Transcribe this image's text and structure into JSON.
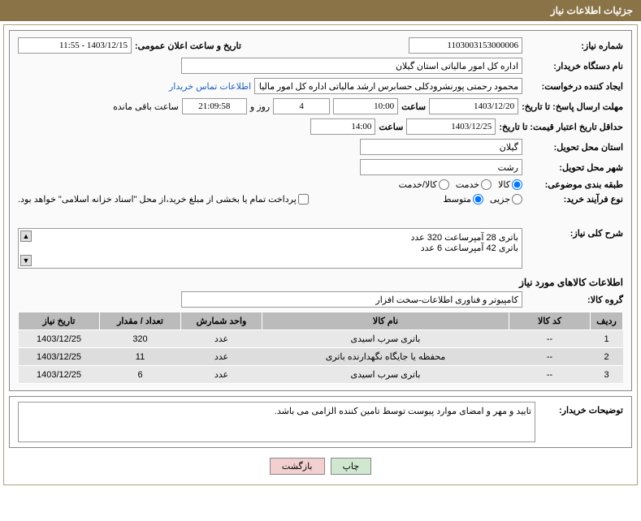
{
  "header": {
    "title": "جزئیات اطلاعات نیاز"
  },
  "labels": {
    "need_no": "شماره نیاز:",
    "announce_dt": "تاریخ و ساعت اعلان عمومی:",
    "buyer_org": "نام دستگاه خریدار:",
    "requester": "ایجاد کننده درخواست:",
    "buyer_contact": "اطلاعات تماس خریدار",
    "reply_deadline": "مهلت ارسال پاسخ: تا تاریخ:",
    "hour": "ساعت",
    "days_and": "روز و",
    "hours_remain": "ساعت باقی مانده",
    "price_validity": "حداقل تاریخ اعتبار قیمت: تا تاریخ:",
    "province": "استان محل تحویل:",
    "city": "شهر محل تحویل:",
    "classification": "طبقه بندی موضوعی:",
    "goods": "کالا",
    "service": "خدمت",
    "goods_service": "کالا/خدمت",
    "purchase_type": "نوع فرآیند خرید:",
    "small": "جزیی",
    "medium": "متوسط",
    "payment_note": "پرداخت تمام یا بخشی از مبلغ خرید،از محل \"اسناد خزانه اسلامی\" خواهد بود.",
    "need_summary": "شرح کلی نیاز:",
    "items_header": "اطلاعات کالاهای مورد نیاز",
    "goods_group": "گروه کالا:",
    "buyer_notes": "توضیحات خریدار:"
  },
  "fields": {
    "need_no": "1103003153000006",
    "announce_dt": "1403/12/15 - 11:55",
    "buyer_org": "اداره کل امور مالیاتی استان گیلان",
    "requester": "محمود رحمتی پورنشرودکلی حسابرس ارشد مالیاتی اداره کل امور مالیاتی استا",
    "reply_date": "1403/12/20",
    "reply_time": "10:00",
    "remain_days": "4",
    "remain_time": "21:09:58",
    "price_date": "1403/12/25",
    "price_time": "14:00",
    "province": "گیلان",
    "city": "رشت",
    "summary_l1": "باتری 28 آمپرساعت 320 عدد",
    "summary_l2": "باتری 42 آمپرساعت 6 عدد",
    "goods_group": "کامپیوتر و فناوری اطلاعات-سخت افزار",
    "buyer_note_text": "تایید و مهر و امضای موارد پیوست توسط تامین کننده الزامی می باشد."
  },
  "table": {
    "headers": {
      "row": "ردیف",
      "code": "کد کالا",
      "name": "نام کالا",
      "unit": "واحد شمارش",
      "qty": "تعداد / مقدار",
      "date": "تاریخ نیاز"
    },
    "rows": [
      {
        "row": "1",
        "code": "--",
        "name": "باتری سرب اسیدی",
        "unit": "عدد",
        "qty": "320",
        "date": "1403/12/25"
      },
      {
        "row": "2",
        "code": "--",
        "name": "محفظه یا جایگاه نگهدارنده باتری",
        "unit": "عدد",
        "qty": "11",
        "date": "1403/12/25"
      },
      {
        "row": "3",
        "code": "--",
        "name": "باتری سرب اسیدی",
        "unit": "عدد",
        "qty": "6",
        "date": "1403/12/25"
      }
    ]
  },
  "buttons": {
    "print": "چاپ",
    "back": "بازگشت"
  },
  "colors": {
    "header_bg": "#8a7346",
    "th_bg": "#bbbbbb",
    "td_bg": "#e8e8e8"
  }
}
